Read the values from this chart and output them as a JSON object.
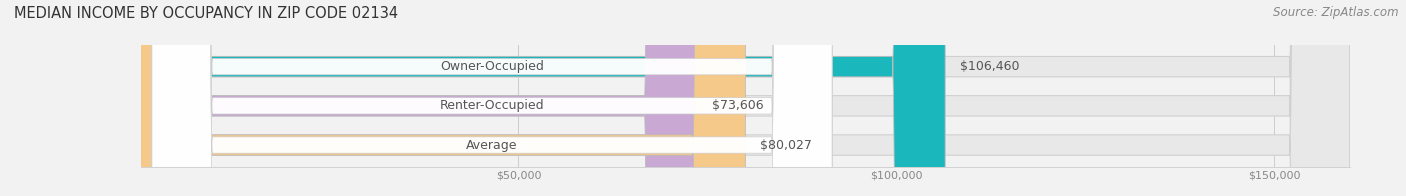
{
  "title": "MEDIAN INCOME BY OCCUPANCY IN ZIP CODE 02134",
  "source": "Source: ZipAtlas.com",
  "categories": [
    "Owner-Occupied",
    "Renter-Occupied",
    "Average"
  ],
  "values": [
    106460,
    73606,
    80027
  ],
  "bar_colors": [
    "#1ab8bc",
    "#c9a8d4",
    "#f5c98a"
  ],
  "bar_track_color": "#e8e8e8",
  "value_labels": [
    "$106,460",
    "$73,606",
    "$80,027"
  ],
  "background_color": "#f2f2f2",
  "xlim": [
    0,
    160000
  ],
  "xticks": [
    50000,
    100000,
    150000
  ],
  "xtick_labels": [
    "$50,000",
    "$100,000",
    "$150,000"
  ],
  "title_fontsize": 10.5,
  "label_fontsize": 9,
  "value_fontsize": 9,
  "source_fontsize": 8.5,
  "figsize": [
    14.06,
    1.96
  ],
  "dpi": 100
}
